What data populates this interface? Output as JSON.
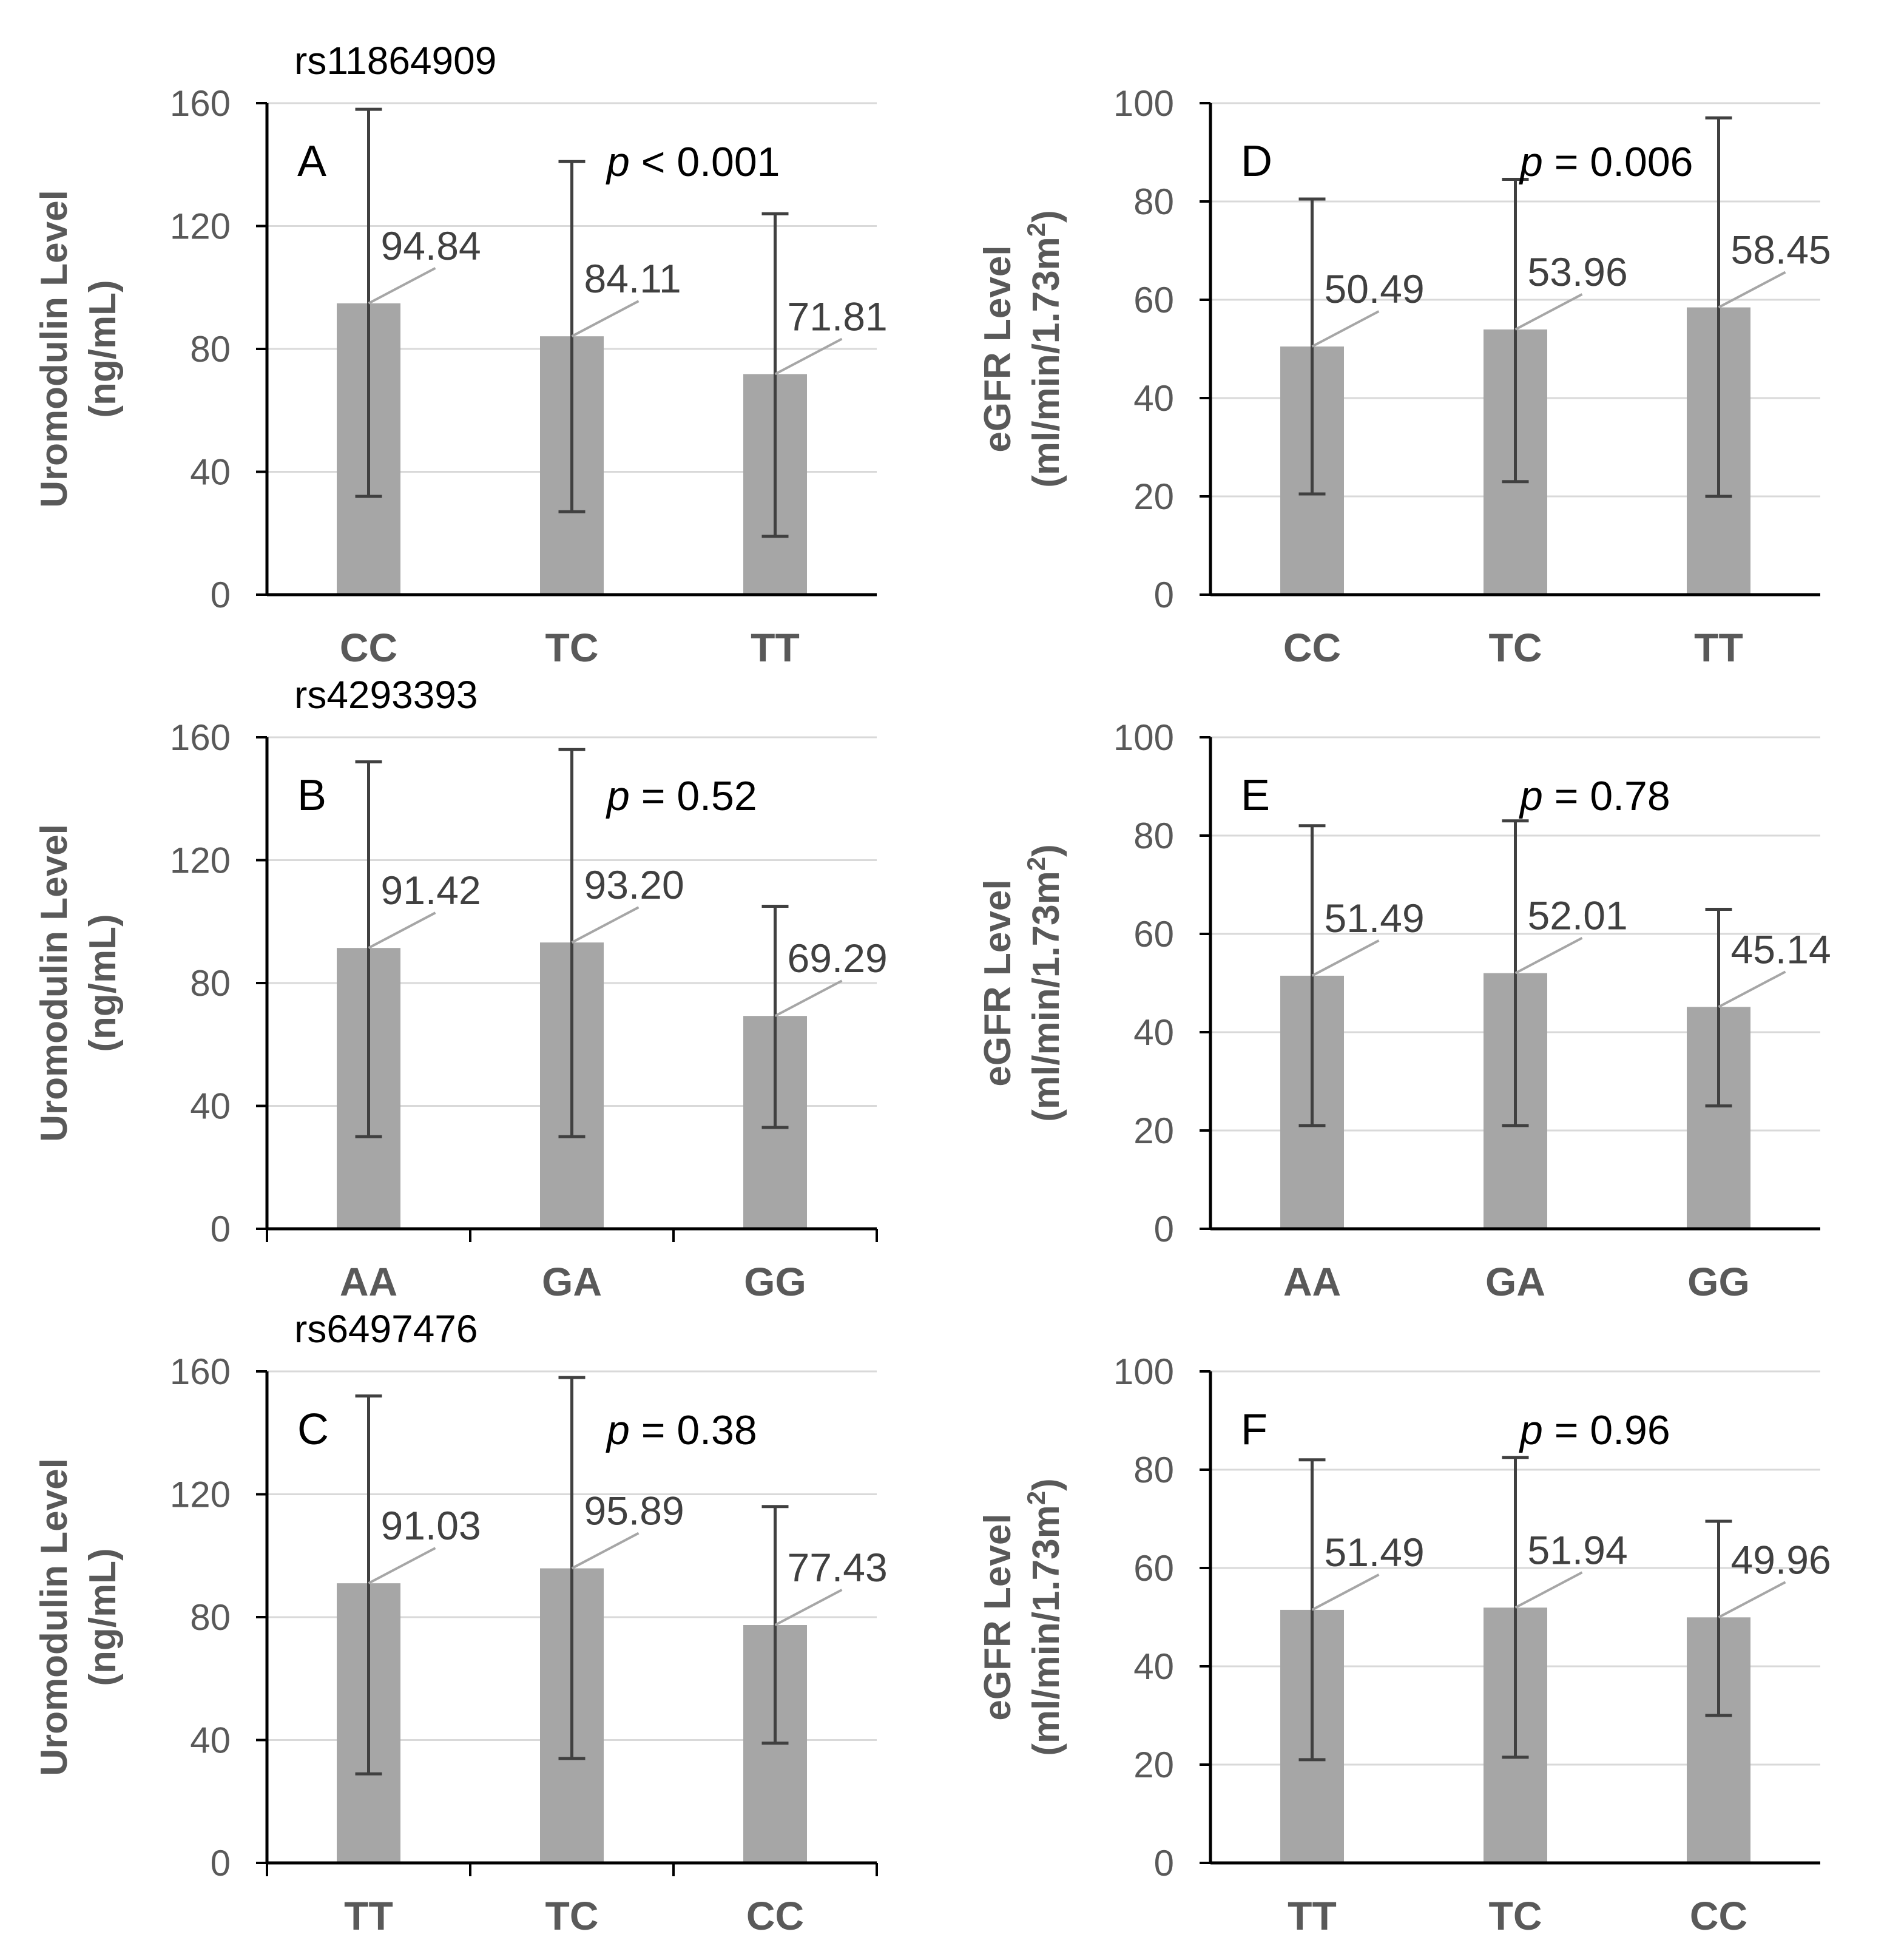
{
  "figure": {
    "colors": {
      "bar": "#a6a6a6",
      "errorbar": "#404040",
      "axis": "#000000",
      "grid": "#d9d9d9",
      "leader": "#a6a6a6"
    }
  },
  "chart_data": [
    {
      "panel": "A",
      "snp": "rs11864909",
      "type": "bar",
      "categories": [
        "CC",
        "TC",
        "TT"
      ],
      "values": [
        94.84,
        84.11,
        71.81
      ],
      "value_labels": [
        "94.84",
        "84.11",
        "71.81"
      ],
      "error_upper": [
        158,
        141,
        124
      ],
      "error_lower": [
        32,
        27,
        19
      ],
      "p_value": "< 0.001",
      "ylabel": [
        "Uromodulin Level",
        "(ng/mL)"
      ],
      "ylim": [
        0,
        160
      ],
      "yticks": [
        0,
        40,
        80,
        120,
        160
      ],
      "grid": true,
      "category_ticks": false
    },
    {
      "panel": "B",
      "snp": "rs4293393",
      "type": "bar",
      "categories": [
        "AA",
        "GA",
        "GG"
      ],
      "values": [
        91.42,
        93.2,
        69.29
      ],
      "value_labels": [
        "91.42",
        "93.20",
        "69.29"
      ],
      "error_upper": [
        152,
        156,
        105
      ],
      "error_lower": [
        30,
        30,
        33
      ],
      "p_value": "= 0.52",
      "ylabel": [
        "Uromodulin Level",
        "(ng/mL)"
      ],
      "ylim": [
        0,
        160
      ],
      "yticks": [
        0,
        40,
        80,
        120,
        160
      ],
      "grid": true,
      "category_ticks": true
    },
    {
      "panel": "C",
      "snp": "rs6497476",
      "type": "bar",
      "categories": [
        "TT",
        "TC",
        "CC"
      ],
      "values": [
        91.03,
        95.89,
        77.43
      ],
      "value_labels": [
        "91.03",
        "95.89",
        "77.43"
      ],
      "error_upper": [
        152,
        158,
        116
      ],
      "error_lower": [
        29,
        34,
        39
      ],
      "p_value": "= 0.38",
      "ylabel": [
        "Uromodulin Level",
        "(ng/mL)"
      ],
      "ylim": [
        0,
        160
      ],
      "yticks": [
        0,
        40,
        80,
        120,
        160
      ],
      "grid": true,
      "category_ticks": true
    },
    {
      "panel": "D",
      "snp": "",
      "type": "bar",
      "categories": [
        "CC",
        "TC",
        "TT"
      ],
      "values": [
        50.49,
        53.96,
        58.45
      ],
      "value_labels": [
        "50.49",
        "53.96",
        "58.45"
      ],
      "error_upper": [
        80.5,
        84.5,
        97
      ],
      "error_lower": [
        20.5,
        23,
        20
      ],
      "p_value": "= 0.006",
      "ylabel": [
        "eGFR Level",
        "(ml/min/1.73m",
        "2",
        ")"
      ],
      "ylim": [
        0,
        100
      ],
      "yticks": [
        0,
        20,
        40,
        60,
        80,
        100
      ],
      "grid": true,
      "category_ticks": false
    },
    {
      "panel": "E",
      "snp": "",
      "type": "bar",
      "categories": [
        "AA",
        "GA",
        "GG"
      ],
      "values": [
        51.49,
        52.01,
        45.14
      ],
      "value_labels": [
        "51.49",
        "52.01",
        "45.14"
      ],
      "error_upper": [
        82,
        83,
        65
      ],
      "error_lower": [
        21,
        21,
        25
      ],
      "p_value": "= 0.78",
      "ylabel": [
        "eGFR Level",
        "(ml/min/1.73m",
        "2",
        ")"
      ],
      "ylim": [
        0,
        100
      ],
      "yticks": [
        0,
        20,
        40,
        60,
        80,
        100
      ],
      "grid": true,
      "category_ticks": false
    },
    {
      "panel": "F",
      "snp": "",
      "type": "bar",
      "categories": [
        "TT",
        "TC",
        "CC"
      ],
      "values": [
        51.49,
        51.94,
        49.96
      ],
      "value_labels": [
        "51.49",
        "51.94",
        "49.96"
      ],
      "error_upper": [
        82,
        82.5,
        69.5
      ],
      "error_lower": [
        21,
        21.5,
        30
      ],
      "p_value": "= 0.96",
      "ylabel": [
        "eGFR Level",
        "(ml/min/1.73m",
        "2",
        ")"
      ],
      "ylim": [
        0,
        100
      ],
      "yticks": [
        0,
        20,
        40,
        60,
        80,
        100
      ],
      "grid": true,
      "category_ticks": false
    }
  ]
}
